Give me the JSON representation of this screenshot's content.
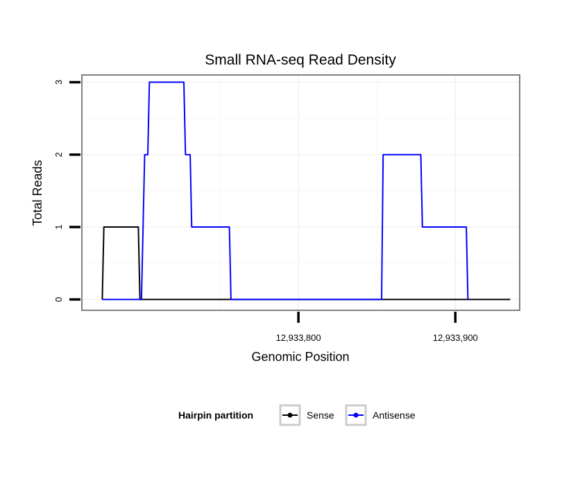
{
  "chart_data": {
    "type": "line",
    "title": "Small RNA-seq Read Density",
    "xlabel": "Genomic Position",
    "ylabel": "Total Reads",
    "xlim": [
      12933662,
      12933941
    ],
    "ylim": [
      -0.15,
      3.1
    ],
    "x_ticks": [
      12933800,
      12933900
    ],
    "x_tick_labels": [
      "12,933,800",
      "12,933,900"
    ],
    "y_ticks": [
      0,
      1,
      2,
      3
    ],
    "y_tick_labels": [
      "0",
      "1",
      "2",
      "3"
    ],
    "grid": true,
    "legend": {
      "title": "Hairpin partition",
      "position": "bottom",
      "entries": [
        "Sense",
        "Antisense"
      ]
    },
    "series": [
      {
        "name": "Sense",
        "color": "#000000",
        "x": [
          12933675,
          12933676,
          12933698,
          12933699,
          12933935
        ],
        "y": [
          0,
          1,
          1,
          0,
          0
        ]
      },
      {
        "name": "Antisense",
        "color": "#0000ff",
        "x": [
          12933675,
          12933700,
          12933702,
          12933704,
          12933705,
          12933727,
          12933728,
          12933731,
          12933732,
          12933756,
          12933757,
          12933853,
          12933854,
          12933878,
          12933879,
          12933907,
          12933908
        ],
        "y": [
          0,
          0,
          2,
          2,
          3,
          3,
          2,
          2,
          1,
          1,
          0,
          0,
          2,
          2,
          1,
          1,
          0
        ]
      }
    ]
  }
}
